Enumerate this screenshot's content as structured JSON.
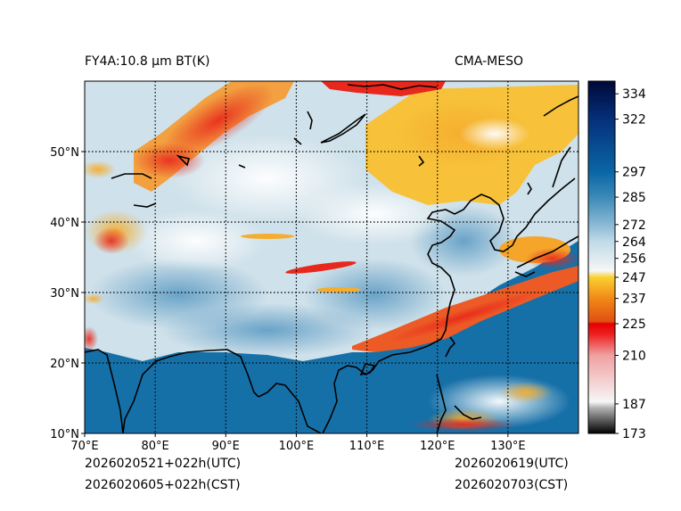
{
  "title_left": "FY4A:10.8 µm BT(K)",
  "title_right": "CMA-MESO",
  "footer": {
    "init_utc": "2026020521+022h(UTC)",
    "init_cst": "2026020605+022h(CST)",
    "valid_utc": "2026020619(UTC)",
    "valid_cst": "2026020703(CST)"
  },
  "map": {
    "lon_range": [
      70,
      140
    ],
    "lat_range": [
      10,
      60
    ],
    "lon_ticks": [
      70,
      80,
      90,
      100,
      110,
      120,
      130
    ],
    "lon_tick_labels": [
      "70°E",
      "80°E",
      "90°E",
      "100°E",
      "110°E",
      "120°E",
      "130°E"
    ],
    "lat_ticks": [
      10,
      20,
      30,
      40,
      50
    ],
    "lat_tick_labels": [
      "10°N",
      "20°N",
      "30°N",
      "40°N",
      "50°N"
    ]
  },
  "colorbar": {
    "range": [
      173,
      340
    ],
    "ticks": [
      334,
      322,
      297,
      285,
      272,
      264,
      256,
      247,
      237,
      225,
      210,
      187,
      173
    ],
    "stops": [
      {
        "value": 173,
        "color": "#000000"
      },
      {
        "value": 185,
        "color": "#b0b0b0"
      },
      {
        "value": 188,
        "color": "#f6f6f6"
      },
      {
        "value": 210,
        "color": "#f0a0a0"
      },
      {
        "value": 220,
        "color": "#ee2020"
      },
      {
        "value": 225,
        "color": "#e60000"
      },
      {
        "value": 226,
        "color": "#e05010"
      },
      {
        "value": 237,
        "color": "#f08a18"
      },
      {
        "value": 247,
        "color": "#fbd030"
      },
      {
        "value": 250,
        "color": "#f6f6f6"
      },
      {
        "value": 264,
        "color": "#c0dae8"
      },
      {
        "value": 272,
        "color": "#8ab8d4"
      },
      {
        "value": 285,
        "color": "#3b8ab8"
      },
      {
        "value": 297,
        "color": "#0a66a6"
      },
      {
        "value": 322,
        "color": "#05307a"
      },
      {
        "value": 340,
        "color": "#000838"
      }
    ]
  },
  "colors": {
    "ocean_warm": "#1670a8",
    "land_cool": "#c8dde8",
    "cloud_mid": "#f5ad2e",
    "cloud_cold": "#e8281c"
  }
}
